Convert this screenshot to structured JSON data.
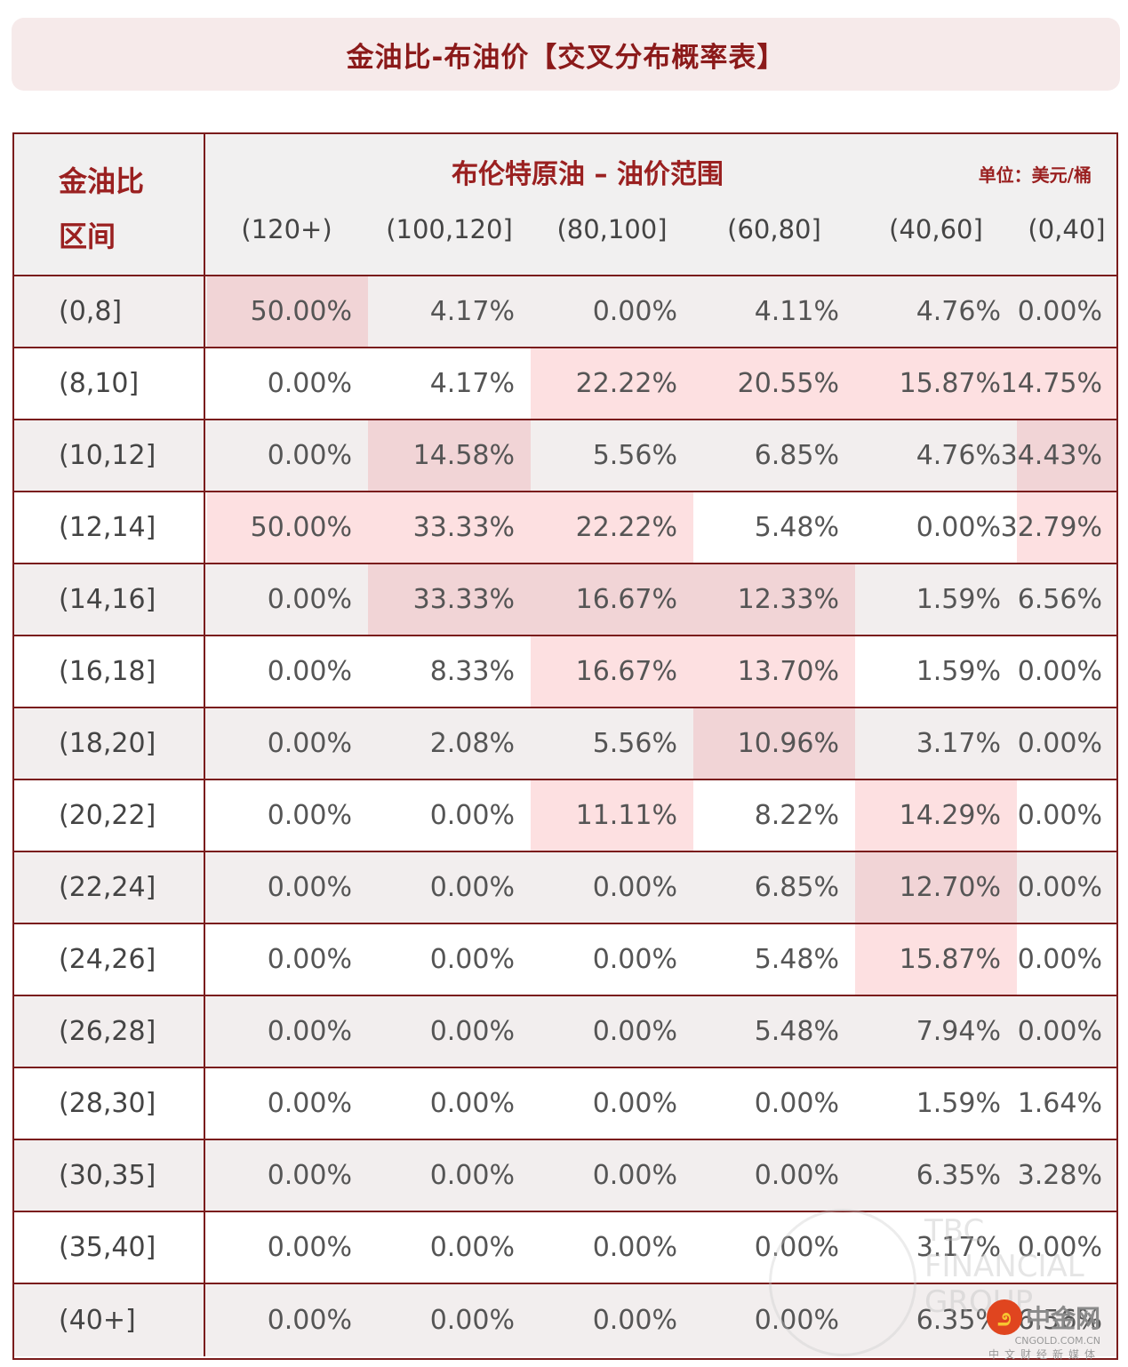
{
  "title": "金油比-布油价【交叉分布概率表】",
  "table": {
    "row_header_title_line1": "金油比",
    "row_header_title_line2": "区间",
    "column_group_title": "布伦特原油 – 油价范围",
    "unit_label": "单位：美元/桶",
    "columns": [
      "(120+)",
      "(100,120]",
      "(80,100]",
      "(60,80]",
      "(40,60]",
      "(0,40]"
    ],
    "rows": [
      {
        "label": "(0,8]",
        "values": [
          "50.00%",
          "4.17%",
          "0.00%",
          "4.11%",
          "4.76%",
          "0.00%"
        ]
      },
      {
        "label": "(8,10]",
        "values": [
          "0.00%",
          "4.17%",
          "22.22%",
          "20.55%",
          "15.87%",
          "14.75%"
        ]
      },
      {
        "label": "(10,12]",
        "values": [
          "0.00%",
          "14.58%",
          "5.56%",
          "6.85%",
          "4.76%",
          "34.43%"
        ]
      },
      {
        "label": "(12,14]",
        "values": [
          "50.00%",
          "33.33%",
          "22.22%",
          "5.48%",
          "0.00%",
          "32.79%"
        ]
      },
      {
        "label": "(14,16]",
        "values": [
          "0.00%",
          "33.33%",
          "16.67%",
          "12.33%",
          "1.59%",
          "6.56%"
        ]
      },
      {
        "label": "(16,18]",
        "values": [
          "0.00%",
          "8.33%",
          "16.67%",
          "13.70%",
          "1.59%",
          "0.00%"
        ]
      },
      {
        "label": "(18,20]",
        "values": [
          "0.00%",
          "2.08%",
          "5.56%",
          "10.96%",
          "3.17%",
          "0.00%"
        ]
      },
      {
        "label": "(20,22]",
        "values": [
          "0.00%",
          "0.00%",
          "11.11%",
          "8.22%",
          "14.29%",
          "0.00%"
        ]
      },
      {
        "label": "(22,24]",
        "values": [
          "0.00%",
          "0.00%",
          "0.00%",
          "6.85%",
          "12.70%",
          "0.00%"
        ]
      },
      {
        "label": "(24,26]",
        "values": [
          "0.00%",
          "0.00%",
          "0.00%",
          "5.48%",
          "15.87%",
          "0.00%"
        ]
      },
      {
        "label": "(26,28]",
        "values": [
          "0.00%",
          "0.00%",
          "0.00%",
          "5.48%",
          "7.94%",
          "0.00%"
        ]
      },
      {
        "label": "(28,30]",
        "values": [
          "0.00%",
          "0.00%",
          "0.00%",
          "0.00%",
          "1.59%",
          "1.64%"
        ]
      },
      {
        "label": "(30,35]",
        "values": [
          "0.00%",
          "0.00%",
          "0.00%",
          "0.00%",
          "6.35%",
          "3.28%"
        ]
      },
      {
        "label": "(35,40]",
        "values": [
          "0.00%",
          "0.00%",
          "0.00%",
          "0.00%",
          "3.17%",
          "0.00%"
        ]
      },
      {
        "label": "(40+]",
        "values": [
          "0.00%",
          "0.00%",
          "0.00%",
          "0.00%",
          "6.35%",
          "6.56%"
        ]
      }
    ],
    "highlight_colors": {
      "light": "#fde0e1",
      "dark": "#f1d4d6"
    }
  },
  "watermarks": {
    "faint_brand": "TBC FINANCIAL GROUP",
    "logo_name": "中金网",
    "logo_url": "CNGOLD.COM.CN",
    "logo_tagline": "中文财经新媒体"
  },
  "colors": {
    "title_text": "#8b1a1a",
    "border": "#7a1c1c",
    "title_bg": "#f6eaea"
  }
}
